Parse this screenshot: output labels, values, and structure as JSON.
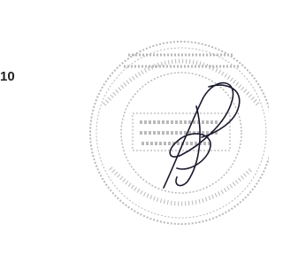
{
  "text": "10"
}
